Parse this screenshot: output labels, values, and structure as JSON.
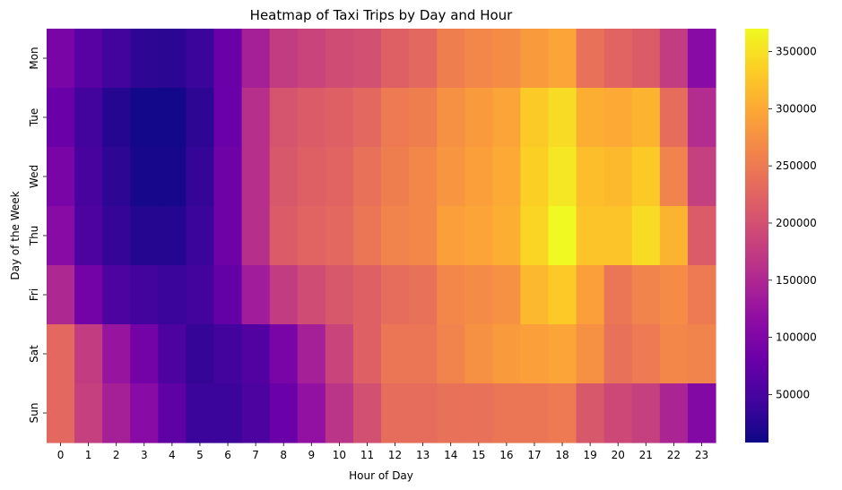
{
  "chart_data": {
    "type": "heatmap",
    "title": "Heatmap of Taxi Trips by Day and Hour",
    "xlabel": "Hour of Day",
    "ylabel": "Day of the Week",
    "x": [
      "0",
      "1",
      "2",
      "3",
      "4",
      "5",
      "6",
      "7",
      "8",
      "9",
      "10",
      "11",
      "12",
      "13",
      "14",
      "15",
      "16",
      "17",
      "18",
      "19",
      "20",
      "21",
      "22",
      "23"
    ],
    "y": [
      "Mon",
      "Tue",
      "Wed",
      "Thu",
      "Fri",
      "Sat",
      "Sun"
    ],
    "values": [
      [
        95000,
        65000,
        45000,
        30000,
        28000,
        40000,
        80000,
        140000,
        175000,
        185000,
        195000,
        200000,
        220000,
        230000,
        255000,
        265000,
        270000,
        285000,
        295000,
        240000,
        225000,
        215000,
        175000,
        110000
      ],
      [
        80000,
        45000,
        25000,
        12000,
        12000,
        30000,
        80000,
        160000,
        205000,
        215000,
        220000,
        230000,
        250000,
        255000,
        275000,
        285000,
        295000,
        330000,
        345000,
        305000,
        300000,
        310000,
        235000,
        155000
      ],
      [
        95000,
        50000,
        30000,
        15000,
        15000,
        35000,
        85000,
        160000,
        210000,
        220000,
        225000,
        240000,
        255000,
        265000,
        280000,
        290000,
        300000,
        335000,
        355000,
        320000,
        315000,
        330000,
        260000,
        180000
      ],
      [
        110000,
        55000,
        35000,
        25000,
        25000,
        40000,
        85000,
        160000,
        215000,
        225000,
        230000,
        245000,
        260000,
        265000,
        290000,
        295000,
        305000,
        340000,
        370000,
        325000,
        325000,
        345000,
        310000,
        215000
      ],
      [
        150000,
        90000,
        55000,
        45000,
        40000,
        45000,
        75000,
        135000,
        175000,
        195000,
        210000,
        220000,
        235000,
        240000,
        265000,
        270000,
        275000,
        315000,
        330000,
        290000,
        245000,
        260000,
        270000,
        250000
      ],
      [
        230000,
        175000,
        125000,
        90000,
        55000,
        35000,
        45000,
        60000,
        95000,
        140000,
        185000,
        220000,
        245000,
        245000,
        260000,
        275000,
        285000,
        290000,
        295000,
        275000,
        240000,
        250000,
        265000,
        260000
      ],
      [
        230000,
        180000,
        140000,
        110000,
        70000,
        40000,
        40000,
        55000,
        80000,
        120000,
        165000,
        200000,
        235000,
        235000,
        240000,
        240000,
        245000,
        245000,
        250000,
        210000,
        190000,
        180000,
        145000,
        105000
      ]
    ],
    "vmin": 8000,
    "vmax": 370000,
    "colormap": "plasma",
    "colorbar_ticks": [
      50000,
      100000,
      150000,
      200000,
      250000,
      300000,
      350000
    ],
    "colorbar_tick_labels": [
      "50000",
      "100000",
      "150000",
      "200000",
      "250000",
      "300000",
      "350000"
    ],
    "grid": false,
    "legend": "colorbar-right"
  }
}
